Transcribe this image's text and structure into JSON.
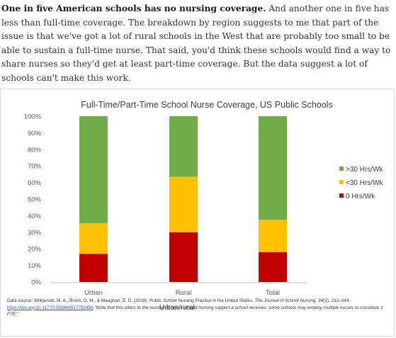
{
  "article": {
    "bold_lead": "One in five American schools has no nursing coverage.",
    "body": " And another one in five has less than full-time coverage. The breakdown by region suggests to me that part of the issue is that we've got a lot of rural schools in the West that are probably too small to be able to sustain a full-time nurse. That said, you'd think these schools would find a way to share nurses so they'd get at least part-time coverage. But the data suggest a lot of schools can't make this work."
  },
  "chart_data": {
    "type": "bar",
    "stacked": true,
    "title": "Full-Time/Part-Time School Nurse Coverage, US Public Schools",
    "xlabel": "Urban/rural",
    "ylabel": "",
    "ylim": [
      0,
      100
    ],
    "ytick_labels": [
      "0%",
      "10%",
      "20%",
      "30%",
      "40%",
      "50%",
      "60%",
      "70%",
      "80%",
      "90%",
      "100%"
    ],
    "categories": [
      "Urban",
      "Rural",
      "Total"
    ],
    "series": [
      {
        "name": "0 Hrs/Wk",
        "color": "#c00000",
        "values": [
          17,
          30,
          18
        ]
      },
      {
        "name": "<30 Hrs/Wk",
        "color": "#ffc000",
        "values": [
          18.5,
          33.5,
          19.5
        ]
      },
      {
        "name": ">30 Hrs/Wk",
        "color": "#70ad47",
        "values": [
          64.5,
          36.5,
          62.5
        ]
      }
    ],
    "legend_position": "right",
    "legend_order": [
      ">30 Hrs/Wk",
      "<30 Hrs/Wk",
      "0 Hrs/Wk"
    ],
    "grid": false
  },
  "source": {
    "prefix": "Data source: Willgerodt, M. A., Brock, D. M., & Maughan, E. D. (2018). Public School Nursing Practice in the United States. ",
    "journal": "The Journal of School Nursing, 34",
    "issue": "(3), 232–244. ",
    "link": "https://doi.org/10.1177/1059840517752456",
    "note": " \"Note that this refers to the number of hours of paid nursing support a school receives; some schools may employ multiple nurses to constitute 1 FTE.\""
  }
}
